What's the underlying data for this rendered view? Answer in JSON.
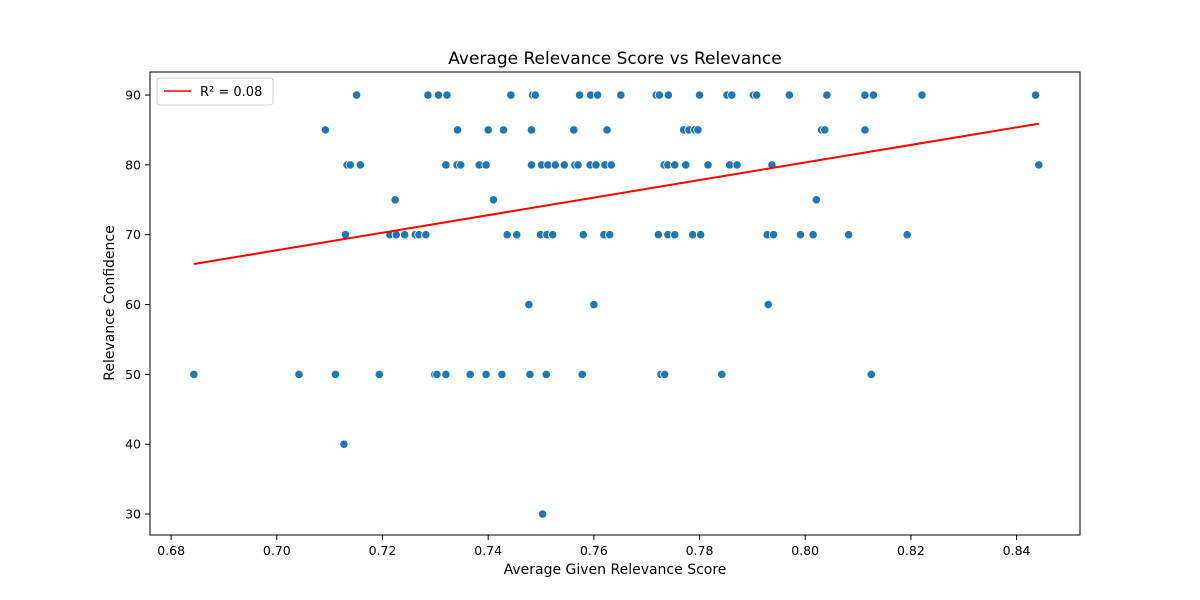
{
  "chart_data": {
    "type": "scatter",
    "title": "Average Relevance Score vs Relevance",
    "xlabel": "Average Given Relevance Score",
    "ylabel": "Relevance Confidence",
    "xlim": [
      0.676,
      0.852
    ],
    "ylim": [
      27,
      93.3
    ],
    "x_ticks": [
      0.68,
      0.7,
      0.72,
      0.74,
      0.76,
      0.78,
      0.8,
      0.82,
      0.84
    ],
    "x_tick_labels": [
      "0.68",
      "0.70",
      "0.72",
      "0.74",
      "0.76",
      "0.78",
      "0.80",
      "0.82",
      "0.84"
    ],
    "y_ticks": [
      30,
      40,
      50,
      60,
      70,
      80,
      90
    ],
    "y_tick_labels": [
      "30",
      "40",
      "50",
      "60",
      "70",
      "80",
      "90"
    ],
    "grid": false,
    "legend_position": "top-left",
    "legend": [
      {
        "label": "R² = 0.08",
        "color": "#ff0000"
      }
    ],
    "point_color": "#1f77b4",
    "points": [
      {
        "x": 0.6843,
        "y": 50
      },
      {
        "x": 0.7042,
        "y": 50
      },
      {
        "x": 0.7092,
        "y": 85
      },
      {
        "x": 0.7111,
        "y": 50
      },
      {
        "x": 0.7127,
        "y": 40
      },
      {
        "x": 0.713,
        "y": 70
      },
      {
        "x": 0.7133,
        "y": 80
      },
      {
        "x": 0.7139,
        "y": 80
      },
      {
        "x": 0.7151,
        "y": 90
      },
      {
        "x": 0.7158,
        "y": 80
      },
      {
        "x": 0.7194,
        "y": 50
      },
      {
        "x": 0.7214,
        "y": 70
      },
      {
        "x": 0.7224,
        "y": 75
      },
      {
        "x": 0.7226,
        "y": 70
      },
      {
        "x": 0.7242,
        "y": 70
      },
      {
        "x": 0.7262,
        "y": 70
      },
      {
        "x": 0.7269,
        "y": 70
      },
      {
        "x": 0.7282,
        "y": 70
      },
      {
        "x": 0.7286,
        "y": 90
      },
      {
        "x": 0.7299,
        "y": 50
      },
      {
        "x": 0.7303,
        "y": 50
      },
      {
        "x": 0.7306,
        "y": 90
      },
      {
        "x": 0.732,
        "y": 50
      },
      {
        "x": 0.732,
        "y": 80
      },
      {
        "x": 0.7322,
        "y": 90
      },
      {
        "x": 0.7341,
        "y": 80
      },
      {
        "x": 0.7342,
        "y": 85
      },
      {
        "x": 0.7348,
        "y": 80
      },
      {
        "x": 0.7366,
        "y": 50
      },
      {
        "x": 0.7383,
        "y": 80
      },
      {
        "x": 0.7396,
        "y": 50
      },
      {
        "x": 0.7396,
        "y": 80
      },
      {
        "x": 0.74,
        "y": 85
      },
      {
        "x": 0.741,
        "y": 75
      },
      {
        "x": 0.7426,
        "y": 50
      },
      {
        "x": 0.7429,
        "y": 85
      },
      {
        "x": 0.7436,
        "y": 70
      },
      {
        "x": 0.7443,
        "y": 90
      },
      {
        "x": 0.7454,
        "y": 70
      },
      {
        "x": 0.7477,
        "y": 60
      },
      {
        "x": 0.7479,
        "y": 50
      },
      {
        "x": 0.7482,
        "y": 80
      },
      {
        "x": 0.7482,
        "y": 85
      },
      {
        "x": 0.7484,
        "y": 90
      },
      {
        "x": 0.7489,
        "y": 90
      },
      {
        "x": 0.7499,
        "y": 70
      },
      {
        "x": 0.7501,
        "y": 80
      },
      {
        "x": 0.7503,
        "y": 30
      },
      {
        "x": 0.751,
        "y": 50
      },
      {
        "x": 0.7511,
        "y": 70
      },
      {
        "x": 0.7513,
        "y": 80
      },
      {
        "x": 0.7522,
        "y": 70
      },
      {
        "x": 0.7527,
        "y": 80
      },
      {
        "x": 0.7544,
        "y": 80
      },
      {
        "x": 0.7562,
        "y": 85
      },
      {
        "x": 0.7564,
        "y": 80
      },
      {
        "x": 0.757,
        "y": 80
      },
      {
        "x": 0.7573,
        "y": 90
      },
      {
        "x": 0.7578,
        "y": 50
      },
      {
        "x": 0.758,
        "y": 70
      },
      {
        "x": 0.7593,
        "y": 80
      },
      {
        "x": 0.7594,
        "y": 90
      },
      {
        "x": 0.76,
        "y": 60
      },
      {
        "x": 0.7604,
        "y": 80
      },
      {
        "x": 0.7607,
        "y": 90
      },
      {
        "x": 0.7619,
        "y": 70
      },
      {
        "x": 0.7621,
        "y": 80
      },
      {
        "x": 0.7625,
        "y": 85
      },
      {
        "x": 0.763,
        "y": 70
      },
      {
        "x": 0.7633,
        "y": 80
      },
      {
        "x": 0.7651,
        "y": 90
      },
      {
        "x": 0.7718,
        "y": 90
      },
      {
        "x": 0.7722,
        "y": 70
      },
      {
        "x": 0.7724,
        "y": 90
      },
      {
        "x": 0.7727,
        "y": 50
      },
      {
        "x": 0.7733,
        "y": 80
      },
      {
        "x": 0.7734,
        "y": 50
      },
      {
        "x": 0.774,
        "y": 70
      },
      {
        "x": 0.774,
        "y": 80
      },
      {
        "x": 0.7741,
        "y": 90
      },
      {
        "x": 0.7753,
        "y": 70
      },
      {
        "x": 0.7753,
        "y": 80
      },
      {
        "x": 0.777,
        "y": 85
      },
      {
        "x": 0.7774,
        "y": 80
      },
      {
        "x": 0.778,
        "y": 85
      },
      {
        "x": 0.7787,
        "y": 70
      },
      {
        "x": 0.7791,
        "y": 85
      },
      {
        "x": 0.7797,
        "y": 85
      },
      {
        "x": 0.78,
        "y": 90
      },
      {
        "x": 0.7802,
        "y": 70
      },
      {
        "x": 0.7816,
        "y": 80
      },
      {
        "x": 0.7842,
        "y": 50
      },
      {
        "x": 0.7852,
        "y": 90
      },
      {
        "x": 0.7857,
        "y": 80
      },
      {
        "x": 0.7861,
        "y": 90
      },
      {
        "x": 0.7871,
        "y": 80
      },
      {
        "x": 0.7902,
        "y": 90
      },
      {
        "x": 0.7908,
        "y": 90
      },
      {
        "x": 0.7928,
        "y": 70
      },
      {
        "x": 0.793,
        "y": 60
      },
      {
        "x": 0.7937,
        "y": 80
      },
      {
        "x": 0.794,
        "y": 70
      },
      {
        "x": 0.797,
        "y": 90
      },
      {
        "x": 0.7991,
        "y": 70
      },
      {
        "x": 0.8015,
        "y": 70
      },
      {
        "x": 0.8021,
        "y": 75
      },
      {
        "x": 0.8031,
        "y": 85
      },
      {
        "x": 0.8037,
        "y": 85
      },
      {
        "x": 0.8041,
        "y": 90
      },
      {
        "x": 0.8082,
        "y": 70
      },
      {
        "x": 0.8113,
        "y": 85
      },
      {
        "x": 0.8113,
        "y": 90
      },
      {
        "x": 0.8125,
        "y": 50
      },
      {
        "x": 0.8129,
        "y": 90
      },
      {
        "x": 0.8193,
        "y": 70
      },
      {
        "x": 0.8221,
        "y": 90
      },
      {
        "x": 0.8436,
        "y": 90
      },
      {
        "x": 0.8442,
        "y": 80
      }
    ],
    "regression": {
      "label": "R² = 0.08",
      "color": "#ff0000",
      "x": [
        0.6843,
        0.8442
      ],
      "y": [
        65.8,
        85.9
      ]
    }
  }
}
